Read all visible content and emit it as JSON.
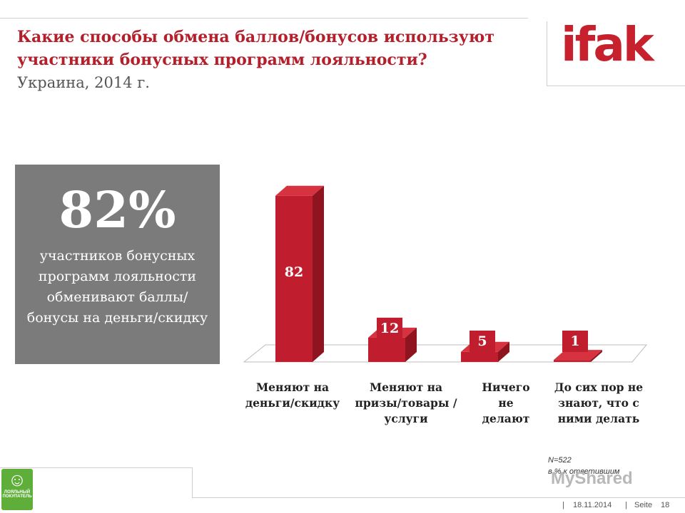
{
  "header": {
    "title": "Какие способы обмена баллов/бонусов используют участники бонусных программ лояльности?",
    "subtitle": "Украина, 2014 г.",
    "logo_text": "ifak"
  },
  "highlight": {
    "value": "82%",
    "text": "участников бонусных программ лояльности обменивают баллы/бонусы на деньги/скидку"
  },
  "chart_data": {
    "type": "bar",
    "title": "",
    "xlabel": "",
    "ylabel": "",
    "ylim": [
      0,
      90
    ],
    "categories": [
      "Меняют на деньги/скидку",
      "Меняют на призы/товары /услуги",
      "Ничего не делают",
      "До сих пор не знают, что с ними делать"
    ],
    "values": [
      82,
      12,
      5,
      1
    ],
    "colors": {
      "bar_front": "#c01d2e",
      "bar_side": "#8e1420",
      "bar_top": "#d6323f",
      "label_box": "#c01d2e"
    },
    "grid": false,
    "legend": "none"
  },
  "notes": {
    "sample": "N=522",
    "basis": "в % к ответившим"
  },
  "footer": {
    "date": "18.11.2014",
    "page_label": "Seite",
    "page_number": "18"
  },
  "watermark": "MyShared",
  "corner_logo": {
    "text": "ЛОЯЛЬНЫЙ ПОКУПАТЕЛЬ",
    "icon": "person-icon"
  }
}
